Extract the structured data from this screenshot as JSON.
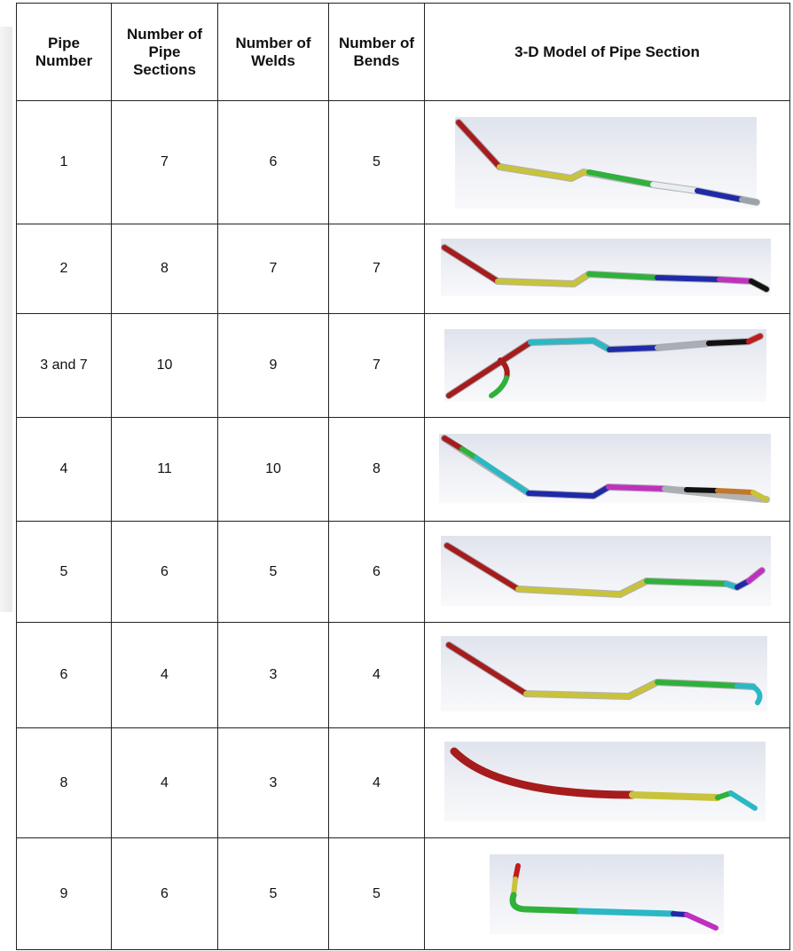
{
  "table": {
    "headers": [
      "Pipe Number",
      "Number of Pipe Sections",
      "Number of Welds",
      "Number of Bends",
      "3-D Model of Pipe Section"
    ],
    "rows": [
      [
        "1",
        "7",
        "6",
        "5"
      ],
      [
        "2",
        "8",
        "7",
        "7"
      ],
      [
        "3 and 7",
        "10",
        "9",
        "7"
      ],
      [
        "4",
        "11",
        "10",
        "8"
      ],
      [
        "5",
        "6",
        "5",
        "6"
      ],
      [
        "6",
        "4",
        "3",
        "4"
      ],
      [
        "8",
        "4",
        "3",
        "4"
      ],
      [
        "9",
        "6",
        "5",
        "5"
      ]
    ]
  }
}
